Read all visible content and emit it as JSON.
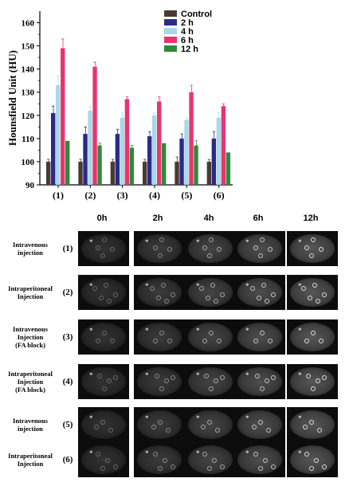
{
  "chart_data": {
    "type": "bar",
    "ylabel": "Hounsfield  Unit (HU)",
    "ylim": [
      90,
      165
    ],
    "yticks": [
      90,
      100,
      110,
      120,
      130,
      140,
      150,
      160
    ],
    "categories": [
      "(1)",
      "(2)",
      "(3)",
      "(4)",
      "(5)",
      "(6)"
    ],
    "legend_position": "top-right",
    "series": [
      {
        "name": "Control",
        "color": "#4a3a34",
        "values": [
          100,
          100,
          100,
          100,
          100,
          100
        ],
        "errors": [
          1,
          1,
          1,
          1,
          2,
          1
        ]
      },
      {
        "name": "2 h",
        "color": "#2b2a8a",
        "values": [
          121,
          112,
          112,
          111,
          110,
          110
        ],
        "errors": [
          3,
          3,
          2,
          2,
          2,
          3
        ]
      },
      {
        "name": "4 h",
        "color": "#a9d8e8",
        "values": [
          133,
          122,
          119,
          120,
          118,
          119
        ],
        "errors": [
          4,
          2,
          2,
          1,
          1,
          2
        ]
      },
      {
        "name": "6 h",
        "color": "#e8356e",
        "values": [
          149,
          141,
          127,
          126,
          130,
          124
        ],
        "errors": [
          4,
          2,
          1,
          2,
          3,
          1
        ]
      },
      {
        "name": "12 h",
        "color": "#2e8a3a",
        "values": [
          109,
          107,
          106,
          108,
          107,
          104
        ],
        "errors": [
          0,
          1,
          1,
          0,
          2,
          0
        ]
      }
    ]
  },
  "ct_panel": {
    "columns": [
      "0h",
      "2h",
      "4h",
      "6h",
      "12h"
    ],
    "rows": [
      {
        "label_lines": [
          "Intravenous",
          "injection"
        ],
        "number": "(1)"
      },
      {
        "label_lines": [
          "Intraperitoneal",
          "Injection"
        ],
        "number": "(2)"
      },
      {
        "label_lines": [
          "Intravenous",
          "Injection",
          "(FA block)"
        ],
        "number": "(3)"
      },
      {
        "label_lines": [
          "Intraperitoneal",
          "Injection",
          "(FA block)"
        ],
        "number": "(4)"
      },
      {
        "label_lines": [
          "Intravenous",
          "injection"
        ],
        "number": "(5)"
      },
      {
        "label_lines": [
          "Intraperitoneal",
          "Injection"
        ],
        "number": "(6)"
      }
    ],
    "marker": "*"
  }
}
